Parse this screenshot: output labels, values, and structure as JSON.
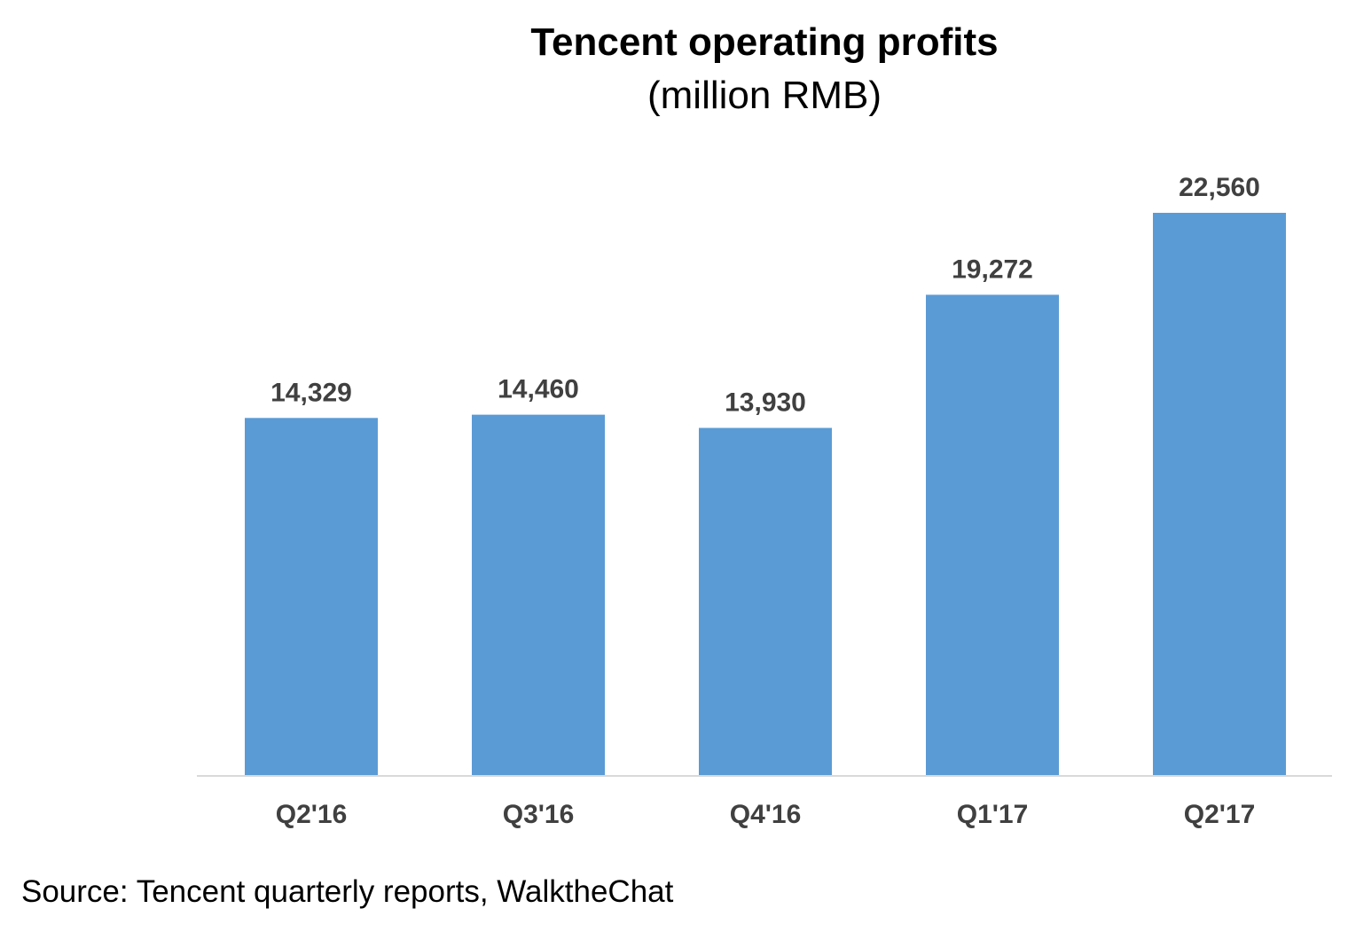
{
  "chart_data": {
    "type": "bar",
    "title": "Tencent operating profits",
    "subtitle": "(million RMB)",
    "xlabel": "",
    "ylabel": "",
    "categories": [
      "Q2'16",
      "Q3'16",
      "Q4'16",
      "Q1'17",
      "Q2'17"
    ],
    "series": [
      {
        "values": [
          14329,
          14460,
          13930,
          19272,
          22560
        ],
        "labels": [
          "14,329",
          "14,460",
          "13,930",
          "19,272",
          "22,560"
        ],
        "color": "#5b9bd5"
      }
    ],
    "ylim": [
      0,
      22560
    ],
    "grid": false,
    "legend": "none",
    "axis_color": "#d9d9d9",
    "label_color": "#404040"
  },
  "source": "Source: Tencent quarterly reports, WalktheChat"
}
